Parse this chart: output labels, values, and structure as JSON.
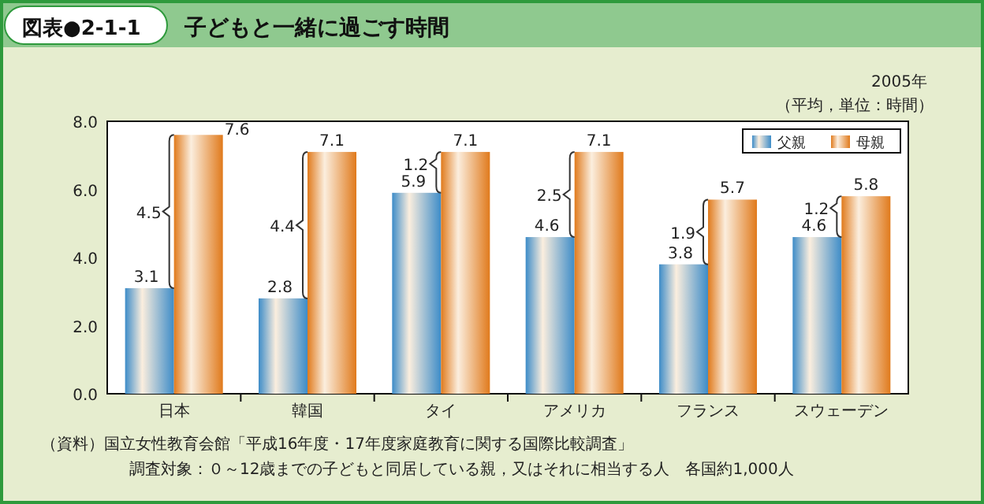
{
  "chart_data": {
    "type": "bar",
    "title": "子どもと一緒に過ごす時間",
    "subtitle": "2005年",
    "ylabel": "（平均，単位：時間）",
    "categories": [
      "日本",
      "韓国",
      "タイ",
      "アメリカ",
      "フランス",
      "スウェーデン"
    ],
    "series": [
      {
        "name": "父親",
        "color": "#3d8cc8",
        "values": [
          3.1,
          2.8,
          5.9,
          4.6,
          3.8,
          4.6
        ]
      },
      {
        "name": "母親",
        "color": "#e07a1c",
        "values": [
          7.6,
          7.1,
          7.1,
          7.1,
          5.7,
          5.8
        ]
      }
    ],
    "ylim": [
      0,
      8
    ],
    "yticks": [
      {
        "value": 0,
        "label": "0.0"
      },
      {
        "value": 2,
        "label": "2.0"
      },
      {
        "value": 4,
        "label": "4.0"
      },
      {
        "value": 6,
        "label": "6.0"
      },
      {
        "value": 8,
        "label": "8.0"
      }
    ],
    "data_labels": true,
    "legend": "top right",
    "grid": false,
    "annotations": [
      "図表●2-1-1",
      {
        "text": "4.5",
        "x": "日本",
        "y": 5.35
      },
      {
        "text": "4.4",
        "x": "韓国",
        "y": 4.95
      },
      {
        "text": "1.2",
        "x": "タイ",
        "y": 6.75
      },
      {
        "text": "2.5",
        "x": "アメリカ",
        "y": 5.85
      },
      {
        "text": "1.9",
        "x": "フランス",
        "y": 4.75
      },
      {
        "text": "1.2",
        "x": "スウェーデン",
        "y": 5.45
      },
      "（資料）国立女性教育会館「平成16年度・17年度家庭教育に関する国際比較調査」",
      "調査対象：０～12歳までの子どもと同居している親，又はそれに相当する人　各国約1,000人"
    ]
  }
}
